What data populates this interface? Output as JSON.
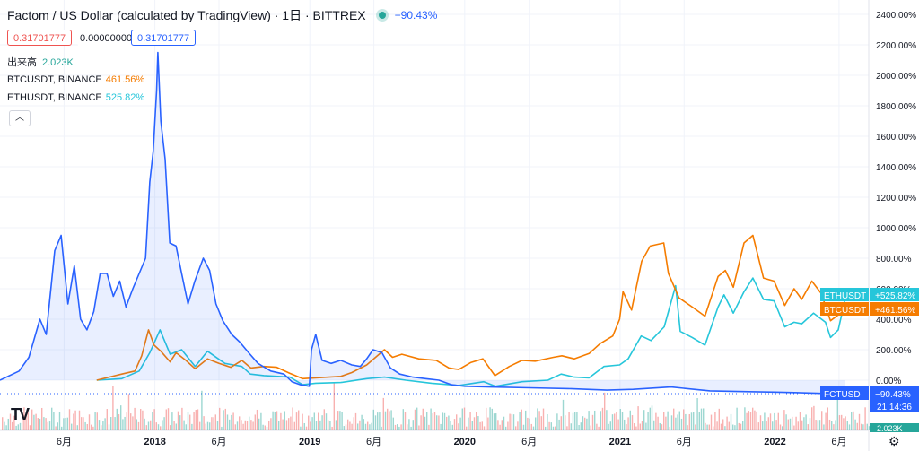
{
  "header": {
    "title": "Factom / US Dollar (calculated by TradingView) · 1日 · BITTREX",
    "change": "−90.43%"
  },
  "price_boxes": {
    "bid": "0.31701777",
    "spread": "0.00000000",
    "ask": "0.31701777"
  },
  "legend": {
    "volume_label": "出来高",
    "volume_value": "2.023K",
    "btc_label": "BTCUSDT, BINANCE",
    "btc_value": "461.56%",
    "eth_label": "ETHUSDT, BINANCE",
    "eth_value": "525.82%"
  },
  "collapse_icon": "chevron-up-icon",
  "colors": {
    "fct": "#2962ff",
    "btc": "#f57c00",
    "eth": "#26c6da",
    "vol_up": "#26a69a",
    "vol_down": "#ef5350"
  },
  "chart_data": {
    "type": "line",
    "title": "Factom / US Dollar (calculated by TradingView)",
    "y_unit": "% change",
    "ylim": [
      -130,
      2450
    ],
    "y_ticks": [
      "2400.00%",
      "2200.00%",
      "2000.00%",
      "1800.00%",
      "1600.00%",
      "1400.00%",
      "1200.00%",
      "1000.00%",
      "800.00%",
      "600.00%",
      "400.00%",
      "200.00%",
      "0.00%"
    ],
    "x_ticks": [
      "6月",
      "2018",
      "6月",
      "2019",
      "6月",
      "2020",
      "6月",
      "2021",
      "6月",
      "2022",
      "6月"
    ],
    "x_tick_dates": [
      "2017-06-01",
      "2018-01-01",
      "2018-06-01",
      "2019-01-01",
      "2019-06-01",
      "2020-01-01",
      "2020-06-01",
      "2021-01-01",
      "2021-06-01",
      "2022-01-01",
      "2022-06-01"
    ],
    "grid": true,
    "series": [
      {
        "name": "FCTUSD",
        "last_label": "−90.43%",
        "countdown": "21:14:36",
        "points": [
          [
            "2017-01-01",
            0
          ],
          [
            "2017-02-15",
            60
          ],
          [
            "2017-03-10",
            150
          ],
          [
            "2017-04-05",
            400
          ],
          [
            "2017-04-20",
            300
          ],
          [
            "2017-05-10",
            850
          ],
          [
            "2017-05-25",
            950
          ],
          [
            "2017-06-10",
            500
          ],
          [
            "2017-06-25",
            750
          ],
          [
            "2017-07-10",
            400
          ],
          [
            "2017-07-25",
            330
          ],
          [
            "2017-08-10",
            450
          ],
          [
            "2017-08-25",
            700
          ],
          [
            "2017-09-10",
            700
          ],
          [
            "2017-09-25",
            550
          ],
          [
            "2017-10-10",
            650
          ],
          [
            "2017-10-25",
            480
          ],
          [
            "2017-11-10",
            600
          ],
          [
            "2017-11-25",
            700
          ],
          [
            "2017-12-10",
            800
          ],
          [
            "2017-12-20",
            1300
          ],
          [
            "2017-12-28",
            1500
          ],
          [
            "2018-01-05",
            1900
          ],
          [
            "2018-01-08",
            2150
          ],
          [
            "2018-01-15",
            1700
          ],
          [
            "2018-01-25",
            1450
          ],
          [
            "2018-02-05",
            900
          ],
          [
            "2018-02-20",
            880
          ],
          [
            "2018-03-05",
            700
          ],
          [
            "2018-03-20",
            500
          ],
          [
            "2018-04-05",
            650
          ],
          [
            "2018-04-25",
            800
          ],
          [
            "2018-05-10",
            720
          ],
          [
            "2018-05-25",
            500
          ],
          [
            "2018-06-10",
            390
          ],
          [
            "2018-07-01",
            300
          ],
          [
            "2018-07-20",
            250
          ],
          [
            "2018-08-10",
            180
          ],
          [
            "2018-09-01",
            110
          ],
          [
            "2018-10-01",
            60
          ],
          [
            "2018-11-01",
            40
          ],
          [
            "2018-11-20",
            -10
          ],
          [
            "2018-12-10",
            -30
          ],
          [
            "2018-12-31",
            -40
          ],
          [
            "2019-01-05",
            200
          ],
          [
            "2019-01-15",
            300
          ],
          [
            "2019-01-30",
            130
          ],
          [
            "2019-02-20",
            110
          ],
          [
            "2019-03-15",
            130
          ],
          [
            "2019-04-10",
            100
          ],
          [
            "2019-04-30",
            90
          ],
          [
            "2019-05-15",
            140
          ],
          [
            "2019-05-30",
            200
          ],
          [
            "2019-06-20",
            180
          ],
          [
            "2019-07-10",
            80
          ],
          [
            "2019-08-01",
            40
          ],
          [
            "2019-09-01",
            20
          ],
          [
            "2019-10-01",
            10
          ],
          [
            "2019-11-01",
            0
          ],
          [
            "2019-12-01",
            -30
          ],
          [
            "2020-01-01",
            -40
          ],
          [
            "2020-03-01",
            -45
          ],
          [
            "2020-06-01",
            -50
          ],
          [
            "2020-09-01",
            -55
          ],
          [
            "2020-12-01",
            -65
          ],
          [
            "2021-02-01",
            -60
          ],
          [
            "2021-05-01",
            -45
          ],
          [
            "2021-08-01",
            -70
          ],
          [
            "2021-11-01",
            -75
          ],
          [
            "2022-01-01",
            -78
          ],
          [
            "2022-04-01",
            -85
          ],
          [
            "2022-06-15",
            -90.43
          ]
        ]
      },
      {
        "name": "BTCUSDT",
        "last_label": "+461.56%",
        "points": [
          [
            "2017-08-17",
            0
          ],
          [
            "2017-09-15",
            20
          ],
          [
            "2017-10-15",
            40
          ],
          [
            "2017-11-15",
            60
          ],
          [
            "2017-12-01",
            160
          ],
          [
            "2017-12-17",
            330
          ],
          [
            "2017-12-30",
            230
          ],
          [
            "2018-01-15",
            190
          ],
          [
            "2018-02-06",
            120
          ],
          [
            "2018-02-20",
            180
          ],
          [
            "2018-03-15",
            130
          ],
          [
            "2018-04-06",
            75
          ],
          [
            "2018-05-05",
            140
          ],
          [
            "2018-06-01",
            110
          ],
          [
            "2018-06-29",
            85
          ],
          [
            "2018-07-25",
            130
          ],
          [
            "2018-08-15",
            80
          ],
          [
            "2018-09-15",
            90
          ],
          [
            "2018-10-15",
            85
          ],
          [
            "2018-11-15",
            45
          ],
          [
            "2018-12-15",
            10
          ],
          [
            "2019-01-15",
            15
          ],
          [
            "2019-02-15",
            20
          ],
          [
            "2019-03-15",
            25
          ],
          [
            "2019-04-10",
            50
          ],
          [
            "2019-05-15",
            100
          ],
          [
            "2019-06-26",
            200
          ],
          [
            "2019-07-15",
            150
          ],
          [
            "2019-08-06",
            170
          ],
          [
            "2019-09-15",
            140
          ],
          [
            "2019-10-26",
            130
          ],
          [
            "2019-11-25",
            80
          ],
          [
            "2019-12-18",
            70
          ],
          [
            "2020-01-15",
            115
          ],
          [
            "2020-02-13",
            140
          ],
          [
            "2020-03-12",
            30
          ],
          [
            "2020-04-15",
            90
          ],
          [
            "2020-05-15",
            130
          ],
          [
            "2020-06-15",
            125
          ],
          [
            "2020-07-28",
            150
          ],
          [
            "2020-08-17",
            160
          ],
          [
            "2020-09-15",
            140
          ],
          [
            "2020-10-20",
            175
          ],
          [
            "2020-11-15",
            240
          ],
          [
            "2020-12-15",
            290
          ],
          [
            "2020-12-31",
            400
          ],
          [
            "2021-01-08",
            580
          ],
          [
            "2021-01-28",
            460
          ],
          [
            "2021-02-21",
            780
          ],
          [
            "2021-03-13",
            880
          ],
          [
            "2021-04-14",
            900
          ],
          [
            "2021-04-25",
            700
          ],
          [
            "2021-05-20",
            540
          ],
          [
            "2021-06-20",
            480
          ],
          [
            "2021-07-20",
            420
          ],
          [
            "2021-08-20",
            680
          ],
          [
            "2021-09-06",
            720
          ],
          [
            "2021-09-25",
            610
          ],
          [
            "2021-10-20",
            900
          ],
          [
            "2021-11-10",
            950
          ],
          [
            "2021-12-05",
            670
          ],
          [
            "2021-12-30",
            650
          ],
          [
            "2022-01-24",
            490
          ],
          [
            "2022-02-15",
            600
          ],
          [
            "2022-03-05",
            530
          ],
          [
            "2022-03-29",
            650
          ],
          [
            "2022-04-20",
            570
          ],
          [
            "2022-05-12",
            390
          ],
          [
            "2022-06-15",
            461.56
          ]
        ]
      },
      {
        "name": "ETHUSDT",
        "last_label": "+525.82%",
        "points": [
          [
            "2017-08-17",
            0
          ],
          [
            "2017-10-15",
            10
          ],
          [
            "2017-11-25",
            60
          ],
          [
            "2017-12-20",
            180
          ],
          [
            "2018-01-13",
            330
          ],
          [
            "2018-02-06",
            170
          ],
          [
            "2018-03-05",
            200
          ],
          [
            "2018-04-06",
            90
          ],
          [
            "2018-05-05",
            190
          ],
          [
            "2018-06-15",
            110
          ],
          [
            "2018-07-25",
            90
          ],
          [
            "2018-08-14",
            40
          ],
          [
            "2018-09-15",
            30
          ],
          [
            "2018-11-15",
            20
          ],
          [
            "2018-12-15",
            -30
          ],
          [
            "2019-01-15",
            -20
          ],
          [
            "2019-03-15",
            -15
          ],
          [
            "2019-05-15",
            10
          ],
          [
            "2019-06-26",
            20
          ],
          [
            "2019-08-15",
            0
          ],
          [
            "2019-10-15",
            -20
          ],
          [
            "2019-12-18",
            -35
          ],
          [
            "2020-02-15",
            -10
          ],
          [
            "2020-03-13",
            -40
          ],
          [
            "2020-05-15",
            -10
          ],
          [
            "2020-07-15",
            0
          ],
          [
            "2020-08-15",
            40
          ],
          [
            "2020-09-15",
            20
          ],
          [
            "2020-10-20",
            15
          ],
          [
            "2020-11-24",
            90
          ],
          [
            "2020-12-31",
            100
          ],
          [
            "2021-01-20",
            140
          ],
          [
            "2021-02-20",
            290
          ],
          [
            "2021-03-15",
            260
          ],
          [
            "2021-04-15",
            350
          ],
          [
            "2021-05-12",
            620
          ],
          [
            "2021-05-23",
            320
          ],
          [
            "2021-06-20",
            280
          ],
          [
            "2021-07-20",
            230
          ],
          [
            "2021-08-20",
            480
          ],
          [
            "2021-09-03",
            560
          ],
          [
            "2021-09-25",
            440
          ],
          [
            "2021-10-20",
            580
          ],
          [
            "2021-11-10",
            670
          ],
          [
            "2021-12-05",
            530
          ],
          [
            "2021-12-30",
            520
          ],
          [
            "2022-01-24",
            350
          ],
          [
            "2022-02-15",
            380
          ],
          [
            "2022-03-05",
            370
          ],
          [
            "2022-04-02",
            440
          ],
          [
            "2022-04-30",
            380
          ],
          [
            "2022-05-12",
            280
          ],
          [
            "2022-05-30",
            330
          ],
          [
            "2022-06-15",
            525.82
          ]
        ]
      }
    ],
    "volume": {
      "label": "出来高",
      "last": "2.023K"
    }
  }
}
